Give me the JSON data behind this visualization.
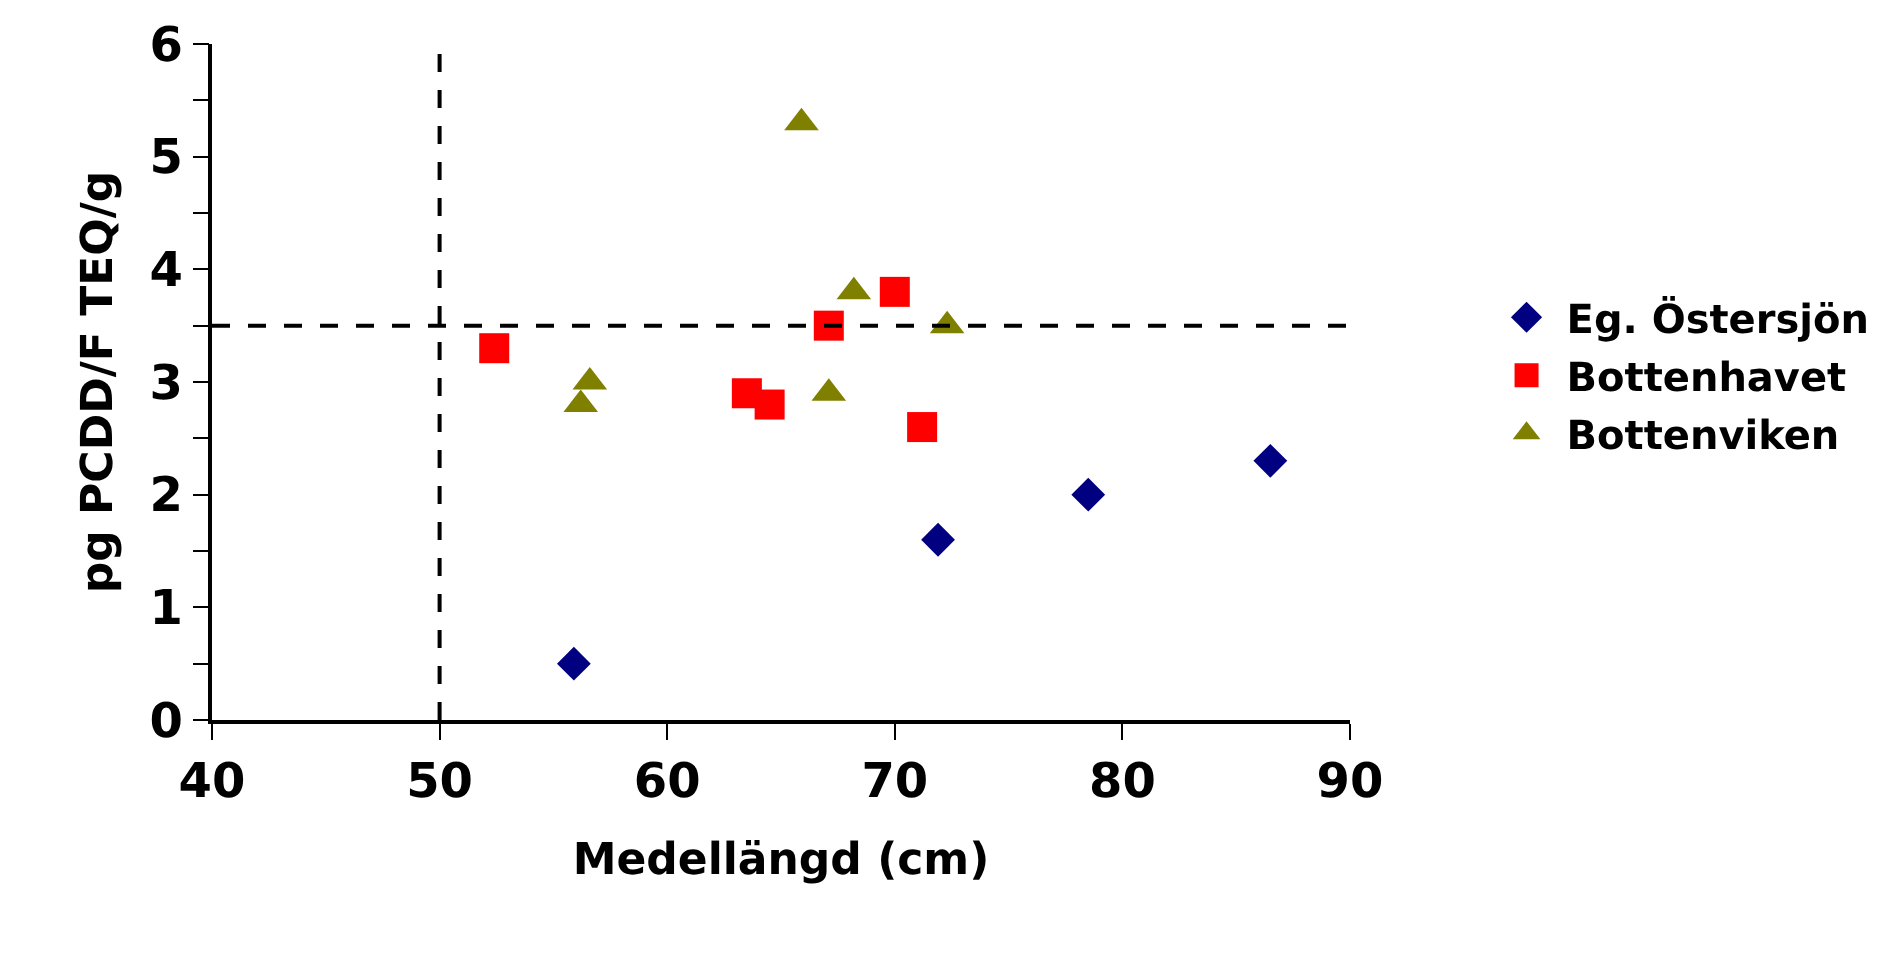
{
  "chart_data": {
    "type": "scatter",
    "xlabel": "Medellängd (cm)",
    "ylabel": "pg PCDD/F TEQ/g",
    "xlim": [
      40,
      90
    ],
    "xticks": [
      40,
      50,
      60,
      70,
      80,
      90
    ],
    "ylim": [
      0,
      6
    ],
    "yticks": [
      0,
      {
        "value": 0.5,
        "label": null
      },
      1,
      {
        "value": 1.5,
        "label": null
      },
      2,
      {
        "value": 2.5,
        "label": null
      },
      3,
      {
        "value": 3.5,
        "label": null
      },
      4,
      {
        "value": 4.5,
        "label": null
      },
      5,
      {
        "value": 5.5,
        "label": null
      },
      6
    ],
    "grid": false,
    "legend": "right",
    "series": [
      {
        "name": "Eg. Östersjön",
        "color": "#000080",
        "marker": "diamond",
        "x": [
          55.9,
          71.9,
          78.5,
          86.5
        ],
        "values": [
          0.5,
          1.6,
          2.0,
          2.3
        ]
      },
      {
        "name": "Bottenhavet",
        "color": "#ff0000",
        "marker": "square",
        "x": [
          52.4,
          63.5,
          64.5,
          67.1,
          70.0,
          71.2
        ],
        "values": [
          3.3,
          2.9,
          2.8,
          3.5,
          3.8,
          2.6
        ]
      },
      {
        "name": "Bottenviken",
        "color": "#808000",
        "marker": "triangle",
        "x": [
          65.9,
          56.6,
          56.2,
          67.1,
          68.2,
          72.3
        ],
        "values": [
          5.3,
          3.0,
          2.8,
          2.9,
          3.8,
          3.5
        ]
      }
    ],
    "ref_lines": [
      {
        "axis": "x",
        "value": 50,
        "color": "#000000",
        "line_style": "dashed"
      },
      {
        "axis": "y",
        "value": 3.5,
        "color": "#000000",
        "line_style": "dashed"
      }
    ]
  }
}
